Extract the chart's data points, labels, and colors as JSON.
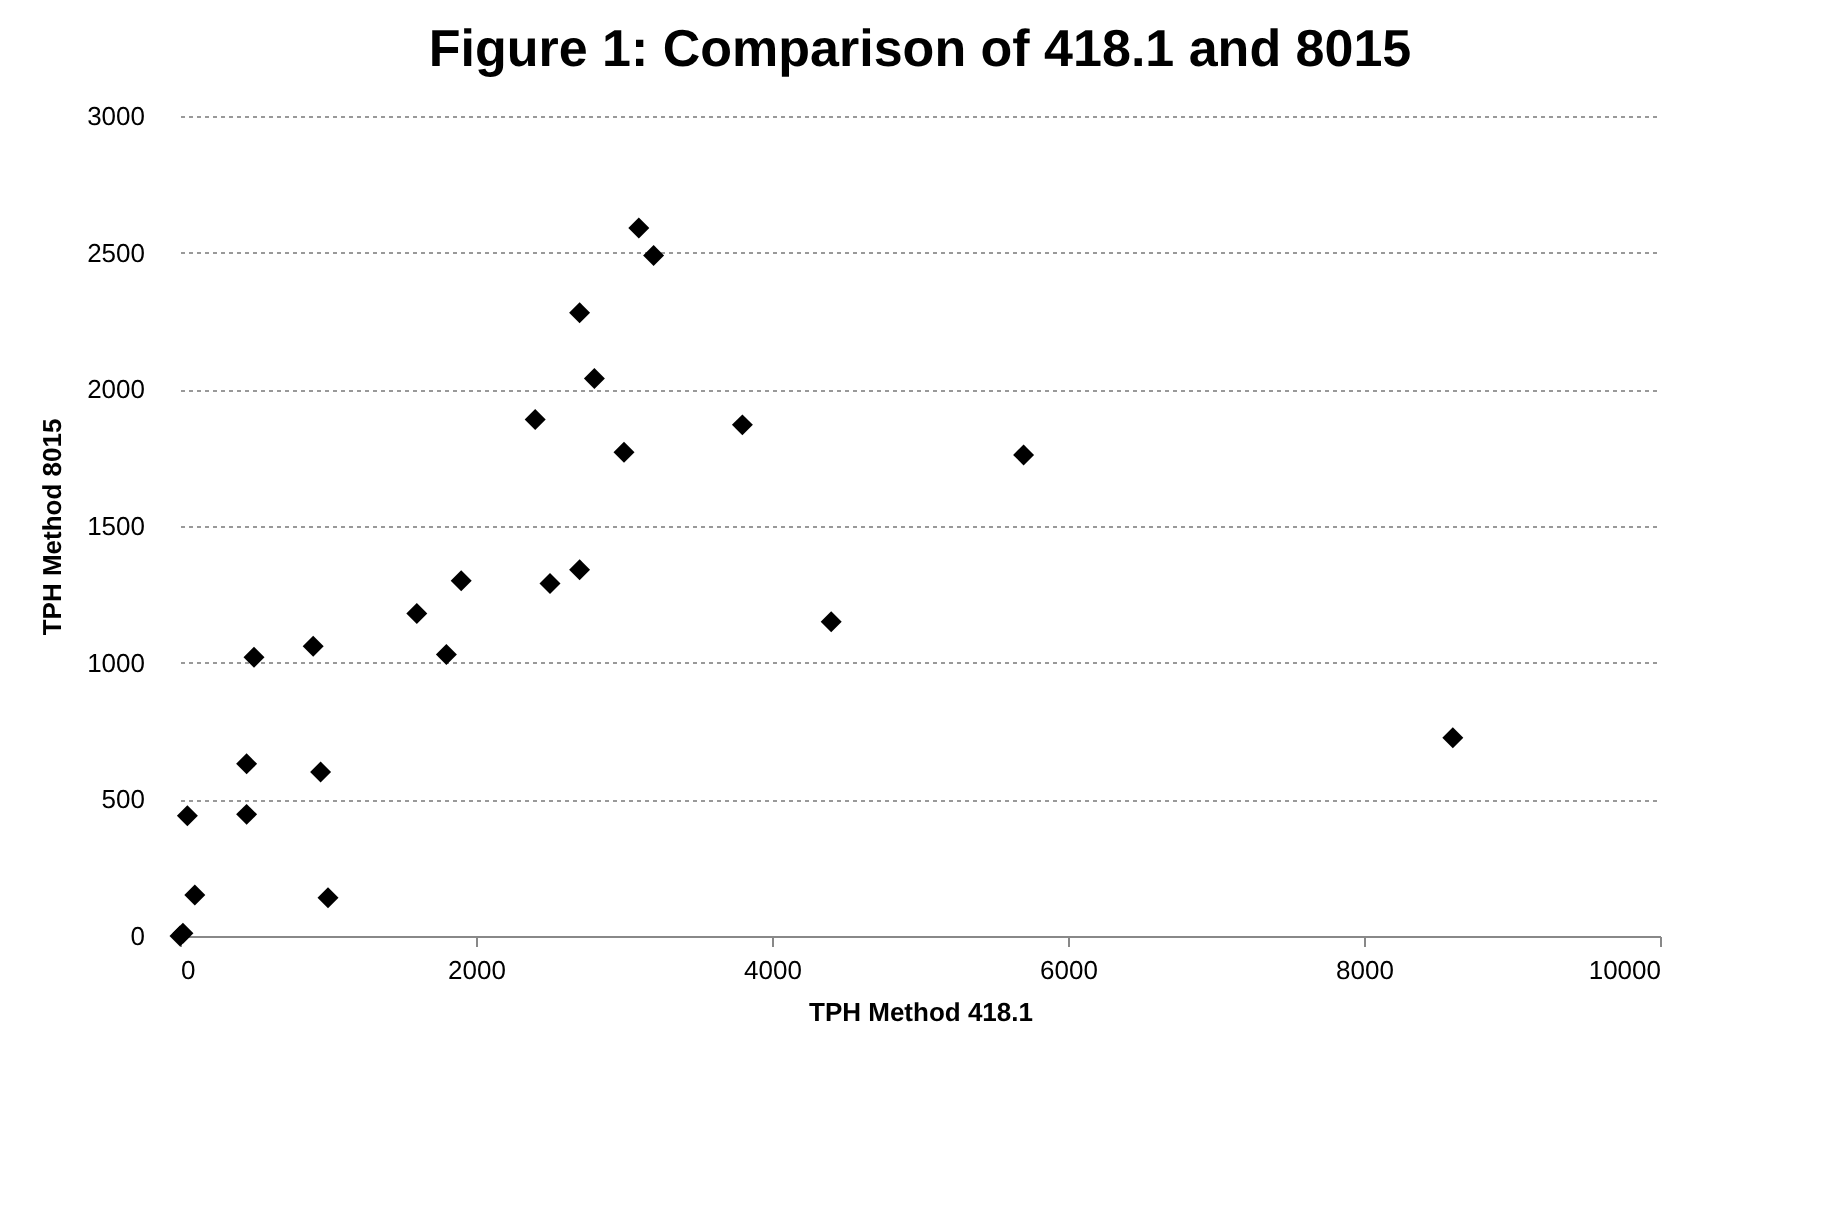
{
  "chart_data": {
    "type": "scatter",
    "title": "Figure 1: Comparison of 418.1 and 8015",
    "xlabel": "TPH Method 418.1",
    "ylabel": "TPH Method 8015",
    "x": [
      0,
      20,
      100,
      50,
      450,
      450,
      500,
      900,
      950,
      1000,
      1600,
      1800,
      1900,
      2400,
      2500,
      2700,
      2700,
      2800,
      3000,
      3100,
      3200,
      3800,
      4400,
      5700,
      8600
    ],
    "series": [
      {
        "color": "#000000",
        "values": [
          0,
          10,
          150,
          440,
          445,
          630,
          1020,
          1060,
          600,
          140,
          1180,
          1030,
          1300,
          1890,
          1290,
          1340,
          2280,
          2040,
          1770,
          2590,
          2490,
          1870,
          1150,
          1760,
          725
        ]
      }
    ],
    "xlim": [
      0,
      10000
    ],
    "xticks": [
      0,
      2000,
      4000,
      6000,
      8000,
      10000
    ],
    "ylim": [
      0,
      3000
    ],
    "yticks": [
      0,
      500,
      1000,
      1500,
      2000,
      2500,
      3000
    ],
    "grid": "y",
    "marker": "diamond"
  }
}
